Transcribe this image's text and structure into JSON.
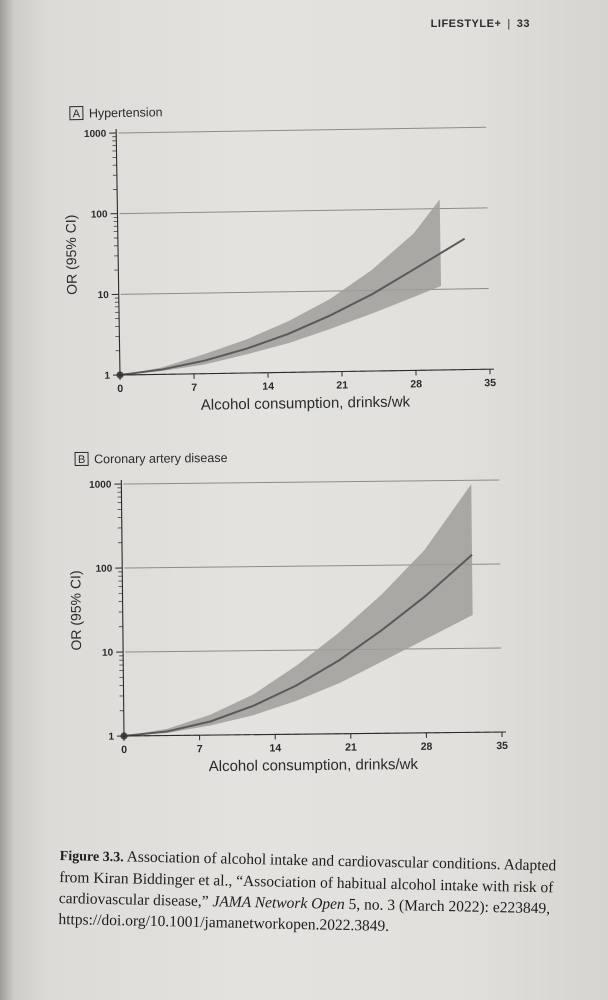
{
  "running_head": {
    "section": "LIFESTYLE+",
    "page_number": "33"
  },
  "chart_data": [
    {
      "type": "line",
      "panel_label": "A",
      "title": "Hypertension",
      "xlabel": "Alcohol consumption, drinks/wk",
      "ylabel": "OR (95% CI)",
      "y_scale": "log",
      "x_ticks": [
        0,
        7,
        14,
        21,
        28,
        35
      ],
      "y_ticks": [
        1,
        10,
        100,
        1000
      ],
      "xlim": [
        0,
        35
      ],
      "ylim": [
        1,
        1000
      ],
      "reference_line_y": 1,
      "point": {
        "x": 0,
        "y": 1
      },
      "series": [
        {
          "x": [
            0,
            4,
            8,
            12,
            16,
            20,
            24,
            28,
            32.8
          ],
          "y": [
            1,
            1.15,
            1.45,
            2.0,
            3.0,
            5.0,
            9.0,
            18,
            42
          ]
        }
      ],
      "band": {
        "x": [
          0,
          4,
          8,
          12,
          16,
          20,
          24,
          28,
          30.5
        ],
        "lower": [
          1,
          1.1,
          1.3,
          1.7,
          2.3,
          3.4,
          5.2,
          8.2,
          11
        ],
        "upper": [
          1,
          1.22,
          1.75,
          2.6,
          4.3,
          8.0,
          18,
          50,
          130
        ]
      },
      "grid": "horizontal at y ticks"
    },
    {
      "type": "line",
      "panel_label": "B",
      "title": "Coronary artery disease",
      "xlabel": "Alcohol consumption, drinks/wk",
      "ylabel": "OR (95% CI)",
      "y_scale": "log",
      "x_ticks": [
        0,
        7,
        14,
        21,
        28,
        35
      ],
      "y_ticks": [
        1,
        10,
        100,
        1000
      ],
      "xlim": [
        0,
        35
      ],
      "ylim": [
        1,
        1000
      ],
      "reference_line_y": 1,
      "point": {
        "x": 0,
        "y": 1
      },
      "series": [
        {
          "x": [
            0,
            4,
            8,
            12,
            16,
            20,
            24,
            28,
            32.4
          ],
          "y": [
            1,
            1.12,
            1.45,
            2.2,
            3.8,
            7.5,
            17,
            42,
            130
          ]
        }
      ],
      "band": {
        "x": [
          0,
          4,
          8,
          12,
          16,
          20,
          24,
          28,
          32.4
        ],
        "lower": [
          1,
          1.07,
          1.3,
          1.7,
          2.5,
          4.0,
          7.2,
          13,
          25
        ],
        "upper": [
          1,
          1.2,
          1.75,
          3.0,
          6.5,
          16,
          45,
          150,
          900
        ]
      },
      "grid": "horizontal at y ticks"
    }
  ],
  "caption": {
    "label": "Figure 3.3.",
    "text_before": " Association of alcohol intake and cardiovascular conditions. Adapted from Kiran Biddinger et al., “Association of habitual alcohol intake with risk of cardiovascular disease,” ",
    "journal": "JAMA Network Open",
    "text_after": " 5, no. 3 (March 2022): e223849, https://doi.org/10.1001/jamanetworkopen.2022.3849."
  },
  "colors": {
    "band": "#9f9d9a",
    "line": "#5b5a58",
    "ink": "#2a2a2a",
    "grid": "#8e8c88"
  }
}
